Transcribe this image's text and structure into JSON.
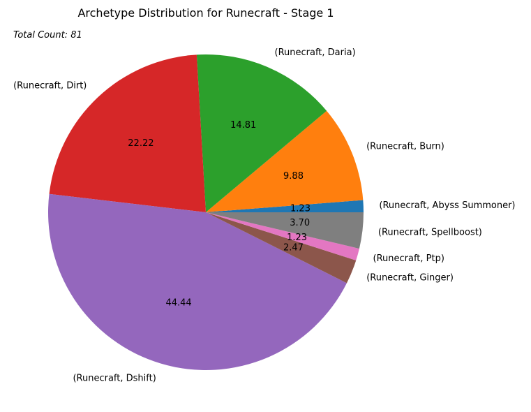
{
  "chart_data": {
    "type": "pie",
    "title": "Archetype Distribution for Runecraft - Stage 1",
    "annotation": "Total Count: 81",
    "categories": [
      "(Runecraft, Abyss Summoner)",
      "(Runecraft, Burn)",
      "(Runecraft, Daria)",
      "(Runecraft, Dirt)",
      "(Runecraft, Dshift)",
      "(Runecraft, Ginger)",
      "(Runecraft, Ptp)",
      "(Runecraft, Spellboost)"
    ],
    "values": [
      1.23,
      9.88,
      14.81,
      22.22,
      44.44,
      2.47,
      1.23,
      3.7
    ],
    "value_labels": [
      "1.23",
      "9.88",
      "14.81",
      "22.22",
      "44.44",
      "2.47",
      "1.23",
      "3.70"
    ],
    "colors": [
      "#1f77b4",
      "#ff7f0e",
      "#2ca02c",
      "#d62728",
      "#9467bd",
      "#8c564b",
      "#e377c2",
      "#7f7f7f"
    ],
    "start_angle_deg": 0,
    "direction": "counterclockwise"
  }
}
